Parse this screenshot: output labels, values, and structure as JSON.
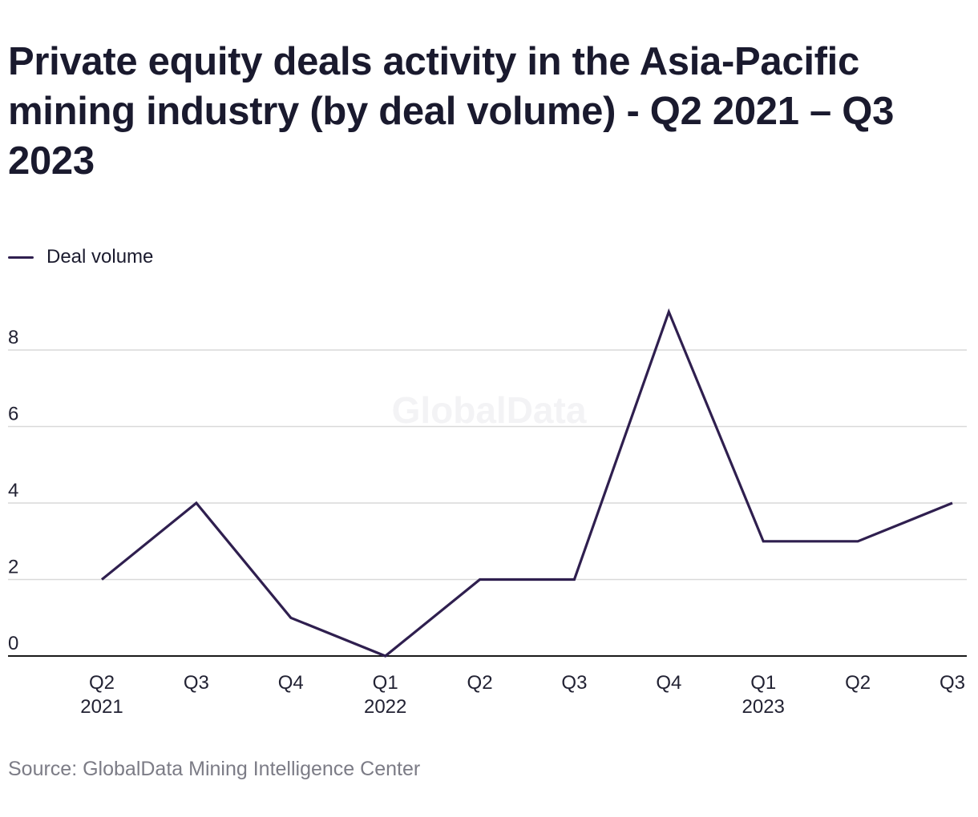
{
  "source": "Source: GlobalData Mining Intelligence Center",
  "watermark": "GlobalData",
  "colors": {
    "line": "#2f1f4f",
    "grid": "#d9d9d9",
    "axis": "#1a1a1a"
  },
  "chart_data": {
    "type": "line",
    "title": "Private equity deals activity in the Asia-Pacific mining industry (by deal volume) - Q2 2021 – Q3 2023",
    "xlabel": "",
    "ylabel": "",
    "categories": [
      [
        "Q2",
        "2021"
      ],
      [
        "Q3",
        ""
      ],
      [
        "Q4",
        ""
      ],
      [
        "Q1",
        "2022"
      ],
      [
        "Q2",
        ""
      ],
      [
        "Q3",
        ""
      ],
      [
        "Q4",
        ""
      ],
      [
        "Q1",
        "2023"
      ],
      [
        "Q2",
        ""
      ],
      [
        "Q3",
        ""
      ]
    ],
    "series": [
      {
        "name": "Deal volume",
        "values": [
          2,
          4,
          1,
          0,
          2,
          2,
          9,
          3,
          3,
          4
        ]
      }
    ],
    "ylim": [
      0,
      9
    ],
    "yticks": [
      0,
      2,
      4,
      6,
      8
    ],
    "grid": true,
    "legend_position": "top-left"
  }
}
